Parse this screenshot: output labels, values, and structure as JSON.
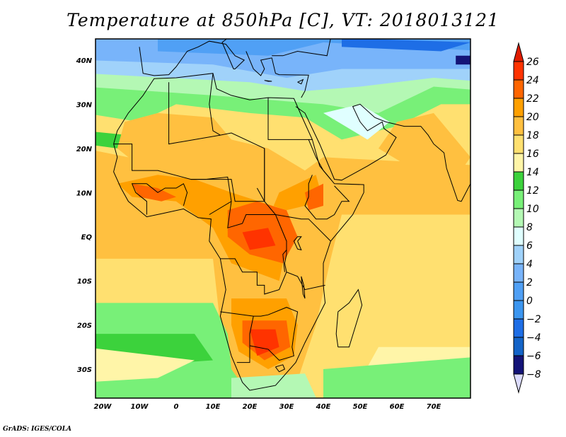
{
  "title": "Temperature at 850hPa [C], VT: 2018013121",
  "credit": "GrADS: IGES/COLA",
  "map": {
    "lon_range": [
      -22,
      80
    ],
    "lat_range": [
      -36.6,
      44.8
    ],
    "lon_ticks": [
      {
        "v": -20,
        "label": "20W"
      },
      {
        "v": -10,
        "label": "10W"
      },
      {
        "v": 0,
        "label": "0"
      },
      {
        "v": 10,
        "label": "10E"
      },
      {
        "v": 20,
        "label": "20E"
      },
      {
        "v": 30,
        "label": "30E"
      },
      {
        "v": 40,
        "label": "40E"
      },
      {
        "v": 50,
        "label": "50E"
      },
      {
        "v": 60,
        "label": "60E"
      },
      {
        "v": 70,
        "label": "70E"
      }
    ],
    "lat_ticks": [
      {
        "v": 40,
        "label": "40N"
      },
      {
        "v": 30,
        "label": "30N"
      },
      {
        "v": 20,
        "label": "20N"
      },
      {
        "v": 10,
        "label": "10N"
      },
      {
        "v": 0,
        "label": "EQ"
      },
      {
        "v": -10,
        "label": "10S"
      },
      {
        "v": -20,
        "label": "20S"
      },
      {
        "v": -30,
        "label": "30S"
      }
    ]
  },
  "colorbar": {
    "labels": [
      "26",
      "24",
      "22",
      "20",
      "18",
      "16",
      "14",
      "12",
      "10",
      "8",
      "6",
      "4",
      "2",
      "0",
      "−2",
      "−4",
      "−6",
      "−8"
    ],
    "top_arrow_color": "#e01c00",
    "bottom_arrow_color": "#dcdcff",
    "colors": [
      "#ff3300",
      "#ff6600",
      "#ffa000",
      "#ffc040",
      "#ffe070",
      "#fff5a8",
      "#3cd23c",
      "#78f078",
      "#b4f8b4",
      "#e0ffff",
      "#a0d2fa",
      "#78b4fa",
      "#50a0f5",
      "#3c96f0",
      "#1e6ee6",
      "#1464c8",
      "#141478"
    ]
  }
}
